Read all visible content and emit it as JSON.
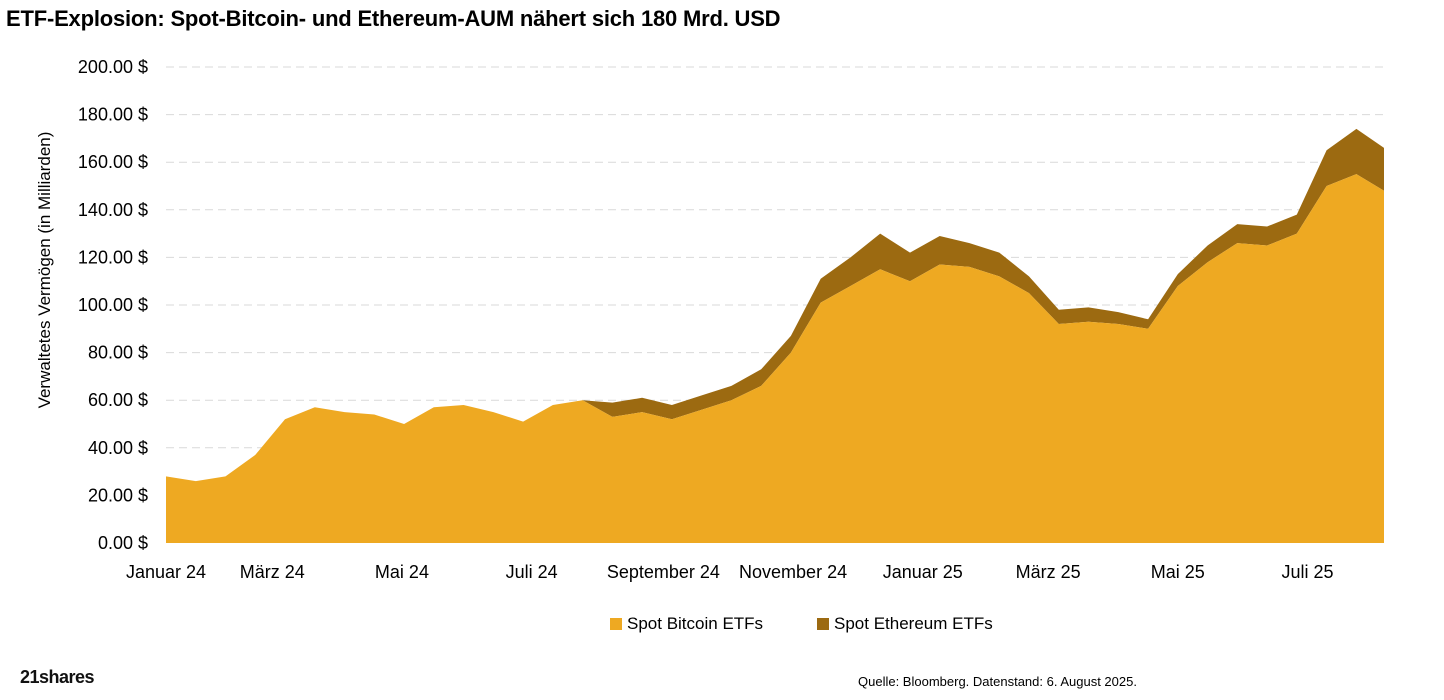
{
  "title": "ETF-Explosion: Spot-Bitcoin- und Ethereum-AUM nähert sich 180 Mrd. USD",
  "logo_text": "21shares",
  "source_text": "Quelle: Bloomberg. Datenstand: 6. August 2025.",
  "colors": {
    "bitcoin": "#EEA922",
    "ethereum": "#9C6A11",
    "grid": "#D9D9D9"
  },
  "chart_data": {
    "type": "area",
    "stacked": true,
    "title": "ETF-Explosion: Spot-Bitcoin- und Ethereum-AUM nähert sich 180 Mrd. USD",
    "xlabel": "",
    "ylabel": "Verwaltetes Vermögen (in Milliarden)",
    "ylim": [
      0,
      200
    ],
    "y_ticks": [
      "0.00 $",
      "20.00 $",
      "40.00 $",
      "60.00 $",
      "80.00 $",
      "100.00 $",
      "120.00 $",
      "140.00 $",
      "160.00 $",
      "180.00 $",
      "200.00 $"
    ],
    "y_tick_values": [
      0,
      20,
      40,
      60,
      80,
      100,
      120,
      140,
      160,
      180,
      200
    ],
    "x_range": [
      "2024-01-11",
      "2025-08-06"
    ],
    "x_ticks": [
      {
        "label": "Januar 24",
        "date": "2024-01-01"
      },
      {
        "label": "März 24",
        "date": "2024-03-01"
      },
      {
        "label": "Mai 24",
        "date": "2024-05-01"
      },
      {
        "label": "Juli 24",
        "date": "2024-07-01"
      },
      {
        "label": "September 24",
        "date": "2024-09-01"
      },
      {
        "label": "November 24",
        "date": "2024-11-01"
      },
      {
        "label": "Januar 25",
        "date": "2025-01-01"
      },
      {
        "label": "März 25",
        "date": "2025-03-01"
      },
      {
        "label": "Mai 25",
        "date": "2025-05-01"
      },
      {
        "label": "Juli 25",
        "date": "2025-07-01"
      }
    ],
    "grid": true,
    "legend_position": "bottom",
    "x": [
      "2024-01-11",
      "2024-01-25",
      "2024-02-08",
      "2024-02-22",
      "2024-03-07",
      "2024-03-21",
      "2024-04-04",
      "2024-04-18",
      "2024-05-02",
      "2024-05-16",
      "2024-05-30",
      "2024-06-13",
      "2024-06-27",
      "2024-07-11",
      "2024-07-25",
      "2024-08-08",
      "2024-08-22",
      "2024-09-05",
      "2024-09-19",
      "2024-10-03",
      "2024-10-17",
      "2024-10-31",
      "2024-11-14",
      "2024-11-28",
      "2024-12-12",
      "2024-12-26",
      "2025-01-09",
      "2025-01-23",
      "2025-02-06",
      "2025-02-20",
      "2025-03-06",
      "2025-03-20",
      "2025-04-03",
      "2025-04-17",
      "2025-05-01",
      "2025-05-15",
      "2025-05-29",
      "2025-06-12",
      "2025-06-26",
      "2025-07-10",
      "2025-07-24",
      "2025-08-06"
    ],
    "series": [
      {
        "name": "Spot Bitcoin ETFs",
        "values": [
          28,
          26,
          28,
          37,
          52,
          57,
          55,
          54,
          50,
          57,
          58,
          55,
          51,
          58,
          60,
          53,
          55,
          52,
          56,
          60,
          66,
          80,
          101,
          108,
          115,
          110,
          117,
          116,
          112,
          105,
          92,
          93,
          92,
          90,
          108,
          118,
          126,
          125,
          130,
          150,
          155,
          148
        ]
      },
      {
        "name": "Spot Ethereum ETFs",
        "values": [
          0,
          0,
          0,
          0,
          0,
          0,
          0,
          0,
          0,
          0,
          0,
          0,
          0,
          0,
          0,
          6,
          6,
          6,
          6,
          6,
          7,
          7,
          10,
          12,
          15,
          12,
          12,
          10,
          10,
          7,
          6,
          6,
          5,
          4,
          5,
          7,
          8,
          8,
          8,
          15,
          19,
          18
        ]
      }
    ]
  }
}
